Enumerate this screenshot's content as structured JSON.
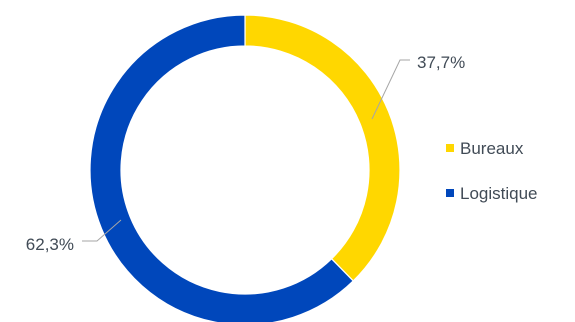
{
  "chart_data": {
    "type": "pie",
    "variant": "donut",
    "title": "",
    "series": [
      {
        "name": "Bureaux",
        "value": 37.7,
        "label": "37,7%",
        "color": "#ffd700"
      },
      {
        "name": "Logistique",
        "value": 62.3,
        "label": "62,3%",
        "color": "#0047bb"
      }
    ],
    "legend": {
      "position": "right",
      "items": [
        "Bureaux",
        "Logistique"
      ]
    }
  }
}
